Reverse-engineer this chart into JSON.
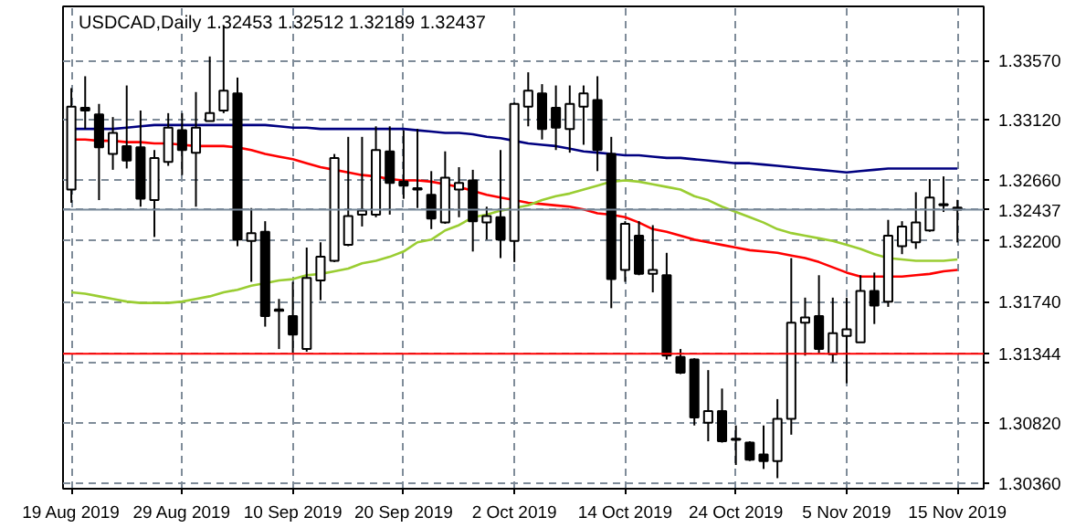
{
  "chart_data": {
    "type": "candlestick",
    "title": "USDCAD,Daily 1.32453 1.32512 1.32189 1.32437",
    "categories": [
      "19 Aug 2019",
      null,
      null,
      null,
      null,
      null,
      null,
      null,
      "29 Aug 2019",
      null,
      null,
      null,
      null,
      null,
      null,
      null,
      "10 Sep 2019",
      null,
      null,
      null,
      null,
      null,
      null,
      null,
      "20 Sep 2019",
      null,
      null,
      null,
      null,
      null,
      null,
      null,
      "2 Oct 2019",
      null,
      null,
      null,
      null,
      null,
      null,
      null,
      "14 Oct 2019",
      null,
      null,
      null,
      null,
      null,
      null,
      null,
      "24 Oct 2019",
      null,
      null,
      null,
      null,
      null,
      null,
      null,
      "5 Nov 2019",
      null,
      null,
      null,
      null,
      null,
      null,
      null,
      "15 Nov 2019"
    ],
    "ohlc": [
      [
        1.3259,
        1.3336,
        1.3249,
        1.3322
      ],
      [
        1.3321,
        1.3345,
        1.3305,
        1.3319
      ],
      [
        1.3316,
        1.3324,
        1.3251,
        1.3291
      ],
      [
        1.3286,
        1.3314,
        1.3274,
        1.3302
      ],
      [
        1.3292,
        1.3338,
        1.3275,
        1.3281
      ],
      [
        1.3291,
        1.3319,
        1.3246,
        1.3252
      ],
      [
        1.3251,
        1.3289,
        1.3223,
        1.3283
      ],
      [
        1.328,
        1.3317,
        1.3277,
        1.3306
      ],
      [
        1.3304,
        1.3317,
        1.327,
        1.3289
      ],
      [
        1.3287,
        1.3333,
        1.3246,
        1.3306
      ],
      [
        1.3311,
        1.336,
        1.3311,
        1.3317
      ],
      [
        1.3319,
        1.3383,
        1.3317,
        1.3334
      ],
      [
        1.3332,
        1.3344,
        1.3216,
        1.3221
      ],
      [
        1.322,
        1.3245,
        1.3189,
        1.3226
      ],
      [
        1.3227,
        1.3235,
        1.3155,
        1.3163
      ],
      [
        1.3168,
        1.3176,
        1.3138,
        1.3167
      ],
      [
        1.3163,
        1.3189,
        1.3135,
        1.3149
      ],
      [
        1.3138,
        1.3215,
        1.3136,
        1.3192
      ],
      [
        1.319,
        1.3219,
        1.3175,
        1.3208
      ],
      [
        1.3205,
        1.3286,
        1.3204,
        1.3283
      ],
      [
        1.3217,
        1.3299,
        1.3216,
        1.3239
      ],
      [
        1.324,
        1.3299,
        1.3231,
        1.3243
      ],
      [
        1.324,
        1.3307,
        1.3238,
        1.3289
      ],
      [
        1.3288,
        1.3307,
        1.324,
        1.3264
      ],
      [
        1.3265,
        1.3304,
        1.3252,
        1.3262
      ],
      [
        1.326,
        1.3305,
        1.3245,
        1.3259
      ],
      [
        1.3255,
        1.3273,
        1.3229,
        1.3237
      ],
      [
        1.3234,
        1.3288,
        1.3233,
        1.3268
      ],
      [
        1.3259,
        1.3276,
        1.3238,
        1.3264
      ],
      [
        1.3266,
        1.3274,
        1.3212,
        1.3235
      ],
      [
        1.3234,
        1.3246,
        1.3221,
        1.3239
      ],
      [
        1.3238,
        1.3289,
        1.3207,
        1.3221
      ],
      [
        1.322,
        1.3325,
        1.3204,
        1.3324
      ],
      [
        1.3322,
        1.3348,
        1.3307,
        1.3334
      ],
      [
        1.3332,
        1.3339,
        1.3297,
        1.3305
      ],
      [
        1.3321,
        1.3338,
        1.3289,
        1.3306
      ],
      [
        1.3305,
        1.3338,
        1.3287,
        1.3324
      ],
      [
        1.3322,
        1.3338,
        1.3293,
        1.3332
      ],
      [
        1.3327,
        1.3345,
        1.3273,
        1.3289
      ],
      [
        1.3286,
        1.3299,
        1.3169,
        1.3191
      ],
      [
        1.3198,
        1.3235,
        1.3189,
        1.3233
      ],
      [
        1.3224,
        1.3235,
        1.3194,
        1.3195
      ],
      [
        1.3195,
        1.3232,
        1.3181,
        1.3198
      ],
      [
        1.3194,
        1.3211,
        1.313,
        1.3133
      ],
      [
        1.3132,
        1.3138,
        1.3119,
        1.312
      ],
      [
        1.313,
        1.3131,
        1.308,
        1.3086
      ],
      [
        1.3082,
        1.3122,
        1.3068,
        1.3091
      ],
      [
        1.3091,
        1.3108,
        1.3067,
        1.3068
      ],
      [
        1.307,
        1.308,
        1.305,
        1.3069
      ],
      [
        1.3067,
        1.3068,
        1.3053,
        1.3054
      ],
      [
        1.3058,
        1.308,
        1.3047,
        1.3053
      ],
      [
        1.3053,
        1.31,
        1.304,
        1.3085
      ],
      [
        1.3085,
        1.3207,
        1.3073,
        1.3158
      ],
      [
        1.3158,
        1.3177,
        1.3133,
        1.3162
      ],
      [
        1.3163,
        1.3194,
        1.3135,
        1.3138
      ],
      [
        1.3134,
        1.3177,
        1.3128,
        1.315
      ],
      [
        1.3148,
        1.3177,
        1.3112,
        1.3153
      ],
      [
        1.3143,
        1.3194,
        1.3143,
        1.3182
      ],
      [
        1.3182,
        1.3196,
        1.3157,
        1.3171
      ],
      [
        1.3174,
        1.3236,
        1.317,
        1.3224
      ],
      [
        1.3216,
        1.3235,
        1.321,
        1.3231
      ],
      [
        1.3219,
        1.3257,
        1.3214,
        1.3234
      ],
      [
        1.3228,
        1.3267,
        1.3227,
        1.3253
      ],
      [
        1.3248,
        1.3269,
        1.3242,
        1.3247
      ],
      [
        1.32453,
        1.32512,
        1.32189,
        1.32437
      ]
    ],
    "series": [
      {
        "type": "line",
        "color": "#000080",
        "values": [
          1.3305,
          1.3305,
          1.3305,
          1.3305,
          1.3306,
          1.3307,
          1.3308,
          1.3308,
          1.3308,
          1.3308,
          1.3308,
          1.3308,
          1.3308,
          1.3308,
          1.3308,
          1.3307,
          1.3306,
          1.3306,
          1.3305,
          1.3305,
          1.3305,
          1.3305,
          1.3305,
          1.3305,
          1.3305,
          1.3304,
          1.3303,
          1.3302,
          1.3302,
          1.3301,
          1.3299,
          1.3298,
          1.3296,
          1.3294,
          1.3293,
          1.3292,
          1.329,
          1.3288,
          1.3287,
          1.3286,
          1.3285,
          1.3285,
          1.3284,
          1.3283,
          1.3283,
          1.3282,
          1.3281,
          1.328,
          1.3279,
          1.3279,
          1.3278,
          1.3277,
          1.3276,
          1.3275,
          1.3274,
          1.3273,
          1.3272,
          1.3273,
          1.3274,
          1.3275,
          1.3275,
          1.3275,
          1.3275,
          1.3275,
          1.3275
        ]
      },
      {
        "type": "line",
        "color": "#ff0000",
        "values": [
          1.3297,
          1.3297,
          1.3296,
          1.3296,
          1.3295,
          1.3295,
          1.3294,
          1.3294,
          1.3293,
          1.3292,
          1.3292,
          1.3292,
          1.3291,
          1.3289,
          1.3286,
          1.3284,
          1.3282,
          1.3279,
          1.3276,
          1.3274,
          1.3272,
          1.327,
          1.3269,
          1.3267,
          1.3266,
          1.3266,
          1.3265,
          1.3263,
          1.3261,
          1.3258,
          1.3255,
          1.3253,
          1.3251,
          1.3249,
          1.3248,
          1.3247,
          1.3246,
          1.3244,
          1.3241,
          1.324,
          1.3238,
          1.3234,
          1.3229,
          1.3227,
          1.3224,
          1.3221,
          1.3219,
          1.3217,
          1.3215,
          1.3213,
          1.3212,
          1.3211,
          1.3209,
          1.3207,
          1.3204,
          1.32,
          1.3196,
          1.3193,
          1.3193,
          1.3193,
          1.3193,
          1.3194,
          1.3195,
          1.3197,
          1.3198
        ]
      },
      {
        "type": "line",
        "color": "#9acd32",
        "values": [
          1.3181,
          1.318,
          1.3178,
          1.3176,
          1.3174,
          1.3173,
          1.3173,
          1.3173,
          1.3174,
          1.3176,
          1.3178,
          1.3181,
          1.3183,
          1.3186,
          1.3188,
          1.319,
          1.3191,
          1.3194,
          1.3195,
          1.3197,
          1.3199,
          1.3203,
          1.3205,
          1.3208,
          1.3212,
          1.3219,
          1.3221,
          1.3228,
          1.3232,
          1.3238,
          1.324,
          1.3243,
          1.3245,
          1.3247,
          1.3251,
          1.3254,
          1.3256,
          1.3259,
          1.3262,
          1.3265,
          1.3266,
          1.3265,
          1.3263,
          1.3261,
          1.3259,
          1.3254,
          1.3251,
          1.3246,
          1.3242,
          1.3238,
          1.3234,
          1.3229,
          1.3226,
          1.3224,
          1.3222,
          1.322,
          1.3217,
          1.3214,
          1.321,
          1.3207,
          1.3206,
          1.3205,
          1.3205,
          1.3205,
          1.3206
        ]
      }
    ],
    "ylim": [
      1.3032,
      1.3398
    ],
    "yticks": [
      {
        "value": 1.3036,
        "label": "1.30360"
      },
      {
        "value": 1.3082,
        "label": "1.30820"
      },
      {
        "value": 1.3128,
        "label": null
      },
      {
        "value": 1.3174,
        "label": "1.31740"
      },
      {
        "value": 1.322,
        "label": "1.32200"
      },
      {
        "value": 1.3266,
        "label": "1.32660"
      },
      {
        "value": 1.3312,
        "label": "1.33120"
      },
      {
        "value": 1.3357,
        "label": "1.33570"
      }
    ],
    "ref_lines": [
      {
        "axis": "y",
        "value": 1.32437,
        "label": "1.32437",
        "color": "#778899"
      },
      {
        "axis": "y",
        "value": 1.31344,
        "label": "1.31344",
        "color": "#ff0000"
      }
    ],
    "grid": true
  }
}
